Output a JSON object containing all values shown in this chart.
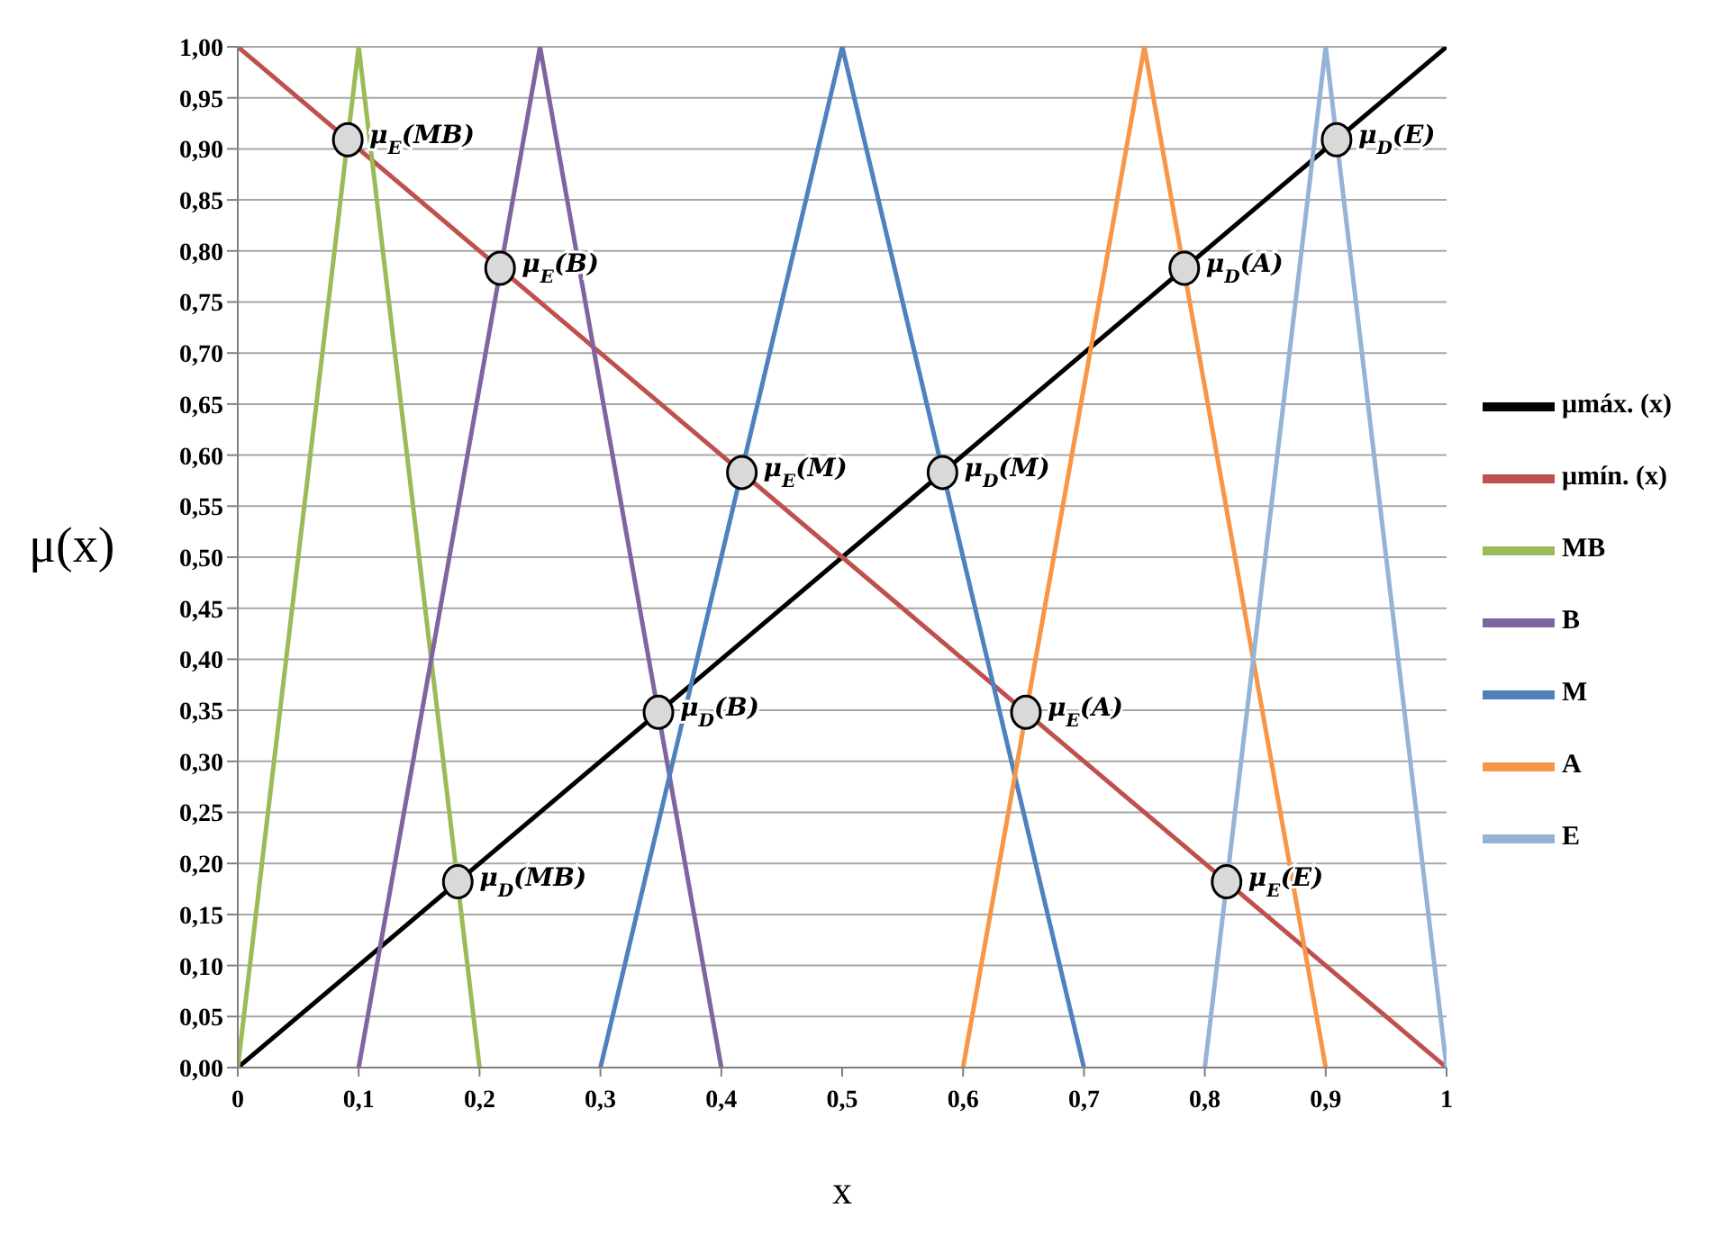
{
  "chart_data": {
    "type": "line",
    "xlabel": "x",
    "ylabel": "μ(x)",
    "legend": "right",
    "grid": "y",
    "marker": "none",
    "xlim": [
      0,
      1
    ],
    "xticks": [
      0,
      {
        "value": 0.1,
        "label": "0,1"
      },
      {
        "value": 0.2,
        "label": "0,2"
      },
      {
        "value": 0.3,
        "label": "0,3"
      },
      {
        "value": 0.4,
        "label": "0,4"
      },
      {
        "value": 0.5,
        "label": "0,5"
      },
      {
        "value": 0.6,
        "label": "0,6"
      },
      {
        "value": 0.7,
        "label": "0,7"
      },
      {
        "value": 0.8,
        "label": "0,8"
      },
      {
        "value": 0.9,
        "label": "0,9"
      },
      1
    ],
    "ylim": [
      0,
      1
    ],
    "yticks": [
      {
        "value": 0,
        "label": "0,00"
      },
      {
        "value": 0.05,
        "label": "0,05"
      },
      {
        "value": 0.1,
        "label": "0,10"
      },
      {
        "value": 0.15,
        "label": "0,15"
      },
      {
        "value": 0.2,
        "label": "0,20"
      },
      {
        "value": 0.25,
        "label": "0,25"
      },
      {
        "value": 0.3,
        "label": "0,30"
      },
      {
        "value": 0.35,
        "label": "0,35"
      },
      {
        "value": 0.4,
        "label": "0,40"
      },
      {
        "value": 0.45,
        "label": "0,45"
      },
      {
        "value": 0.5,
        "label": "0,50"
      },
      {
        "value": 0.55,
        "label": "0,55"
      },
      {
        "value": 0.6,
        "label": "0,60"
      },
      {
        "value": 0.65,
        "label": "0,65"
      },
      {
        "value": 0.7,
        "label": "0,70"
      },
      {
        "value": 0.75,
        "label": "0,75"
      },
      {
        "value": 0.8,
        "label": "0,80"
      },
      {
        "value": 0.85,
        "label": "0,85"
      },
      {
        "value": 0.9,
        "label": "0,90"
      },
      {
        "value": 0.95,
        "label": "0,95"
      },
      {
        "value": 1,
        "label": "1,00"
      }
    ],
    "series": [
      {
        "name": "μmáx. (x)",
        "color": "#000000",
        "x": [
          0,
          1
        ],
        "values": [
          0,
          1
        ]
      },
      {
        "name": "μmín. (x)",
        "color": "#c0504d",
        "x": [
          0,
          1
        ],
        "values": [
          1,
          0
        ]
      },
      {
        "name": "MB",
        "color": "#9bbb59",
        "x": [
          0,
          0.1,
          0.2
        ],
        "values": [
          0,
          1,
          0
        ]
      },
      {
        "name": "B",
        "color": "#8064a2",
        "x": [
          0.1,
          0.25,
          0.4
        ],
        "values": [
          0,
          1,
          0
        ]
      },
      {
        "name": "M",
        "color": "#4f81bd",
        "x": [
          0.3,
          0.5,
          0.7
        ],
        "values": [
          0,
          1,
          0
        ]
      },
      {
        "name": "A",
        "color": "#f79646",
        "x": [
          0.6,
          0.75,
          0.9
        ],
        "values": [
          0,
          1,
          0
        ]
      },
      {
        "name": "E",
        "color": "#95b3d7",
        "x": [
          0.8,
          0.9,
          1
        ],
        "values": [
          0,
          1,
          0
        ]
      },
      {
        "type": "scatter",
        "marker": "circle",
        "color": "#d9d9d9",
        "x": [
          0.091,
          0.217,
          0.417,
          0.652,
          0.818,
          0.182,
          0.348,
          0.583,
          0.783,
          0.909
        ],
        "values": [
          0.909,
          0.783,
          0.583,
          0.348,
          0.182,
          0.182,
          0.348,
          0.583,
          0.783,
          0.909
        ]
      }
    ],
    "annotations": [
      {
        "text": "μ$_{E}$(MB)",
        "x": 0.091,
        "y": 0.909
      },
      {
        "text": "μ$_{E}$(B)",
        "x": 0.217,
        "y": 0.783
      },
      {
        "text": "μ$_{E}$(M)",
        "x": 0.417,
        "y": 0.583
      },
      {
        "text": "μ$_{E}$(A)",
        "x": 0.652,
        "y": 0.348
      },
      {
        "text": "μ$_{E}$(E)",
        "x": 0.818,
        "y": 0.182
      },
      {
        "text": "μ$_{D}$(MB)",
        "x": 0.182,
        "y": 0.182
      },
      {
        "text": "μ$_{D}$(B)",
        "x": 0.348,
        "y": 0.348
      },
      {
        "text": "μ$_{D}$(M)",
        "x": 0.583,
        "y": 0.583
      },
      {
        "text": "μ$_{D}$(A)",
        "x": 0.783,
        "y": 0.783
      },
      {
        "text": "μ$_{D}$(E)",
        "x": 0.909,
        "y": 0.909
      }
    ]
  }
}
